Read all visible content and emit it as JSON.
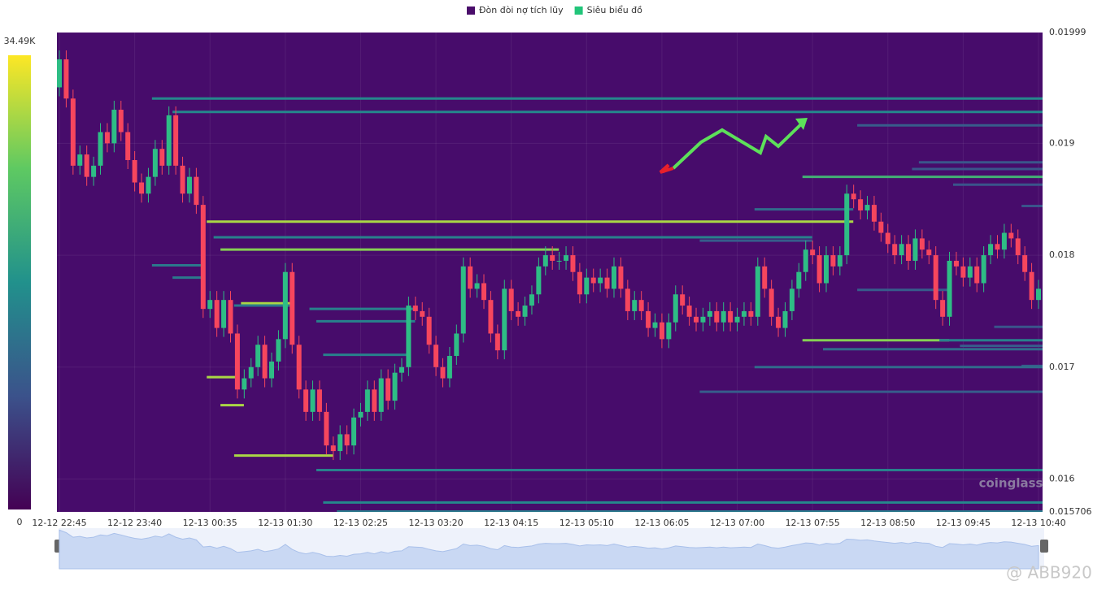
{
  "chart_data": {
    "type": "candlestick",
    "legend": [
      {
        "name": "Đòn đòi nợ tích lũy",
        "color": "#4a0d6b"
      },
      {
        "name": "Siêu biểu đồ",
        "color": "#22c57a"
      }
    ],
    "up_color": "#2ebd85",
    "down_color": "#f6465d",
    "ylim": [
      0.015706,
      0.01999
    ],
    "yticks": [
      0.01999,
      0.019,
      0.018,
      0.017,
      0.016,
      0.015706
    ],
    "xlim": [
      0,
      143
    ],
    "xticks": [
      {
        "value": 0,
        "label": "12-12 22:45"
      },
      {
        "value": 11,
        "label": "12-12 23:40"
      },
      {
        "value": 22,
        "label": "12-13 00:35"
      },
      {
        "value": 33,
        "label": "12-13 01:30"
      },
      {
        "value": 44,
        "label": "12-13 02:25"
      },
      {
        "value": 55,
        "label": "12-13 03:20"
      },
      {
        "value": 66,
        "label": "12-13 04:15"
      },
      {
        "value": 77,
        "label": "12-13 05:10"
      },
      {
        "value": 88,
        "label": "12-13 06:05"
      },
      {
        "value": 99,
        "label": "12-13 07:00"
      },
      {
        "value": 110,
        "label": "12-13 07:55"
      },
      {
        "value": 121,
        "label": "12-13 08:50"
      },
      {
        "value": 132,
        "label": "12-13 09:45"
      },
      {
        "value": 143,
        "label": "12-13 10:40"
      }
    ],
    "grid": true,
    "colorscale": {
      "min": 0,
      "max": {
        "value": 34490,
        "label": "34.49K"
      }
    },
    "watermark": "coinglass",
    "credit": "@ ABB920",
    "open": [
      0.0195,
      0.01975,
      0.0194,
      0.0188,
      0.0189,
      0.0187,
      0.0188,
      0.0191,
      0.019,
      0.0193,
      0.0191,
      0.01885,
      0.01865,
      0.01855,
      0.0187,
      0.01895,
      0.0188,
      0.01925,
      0.0188,
      0.01855,
      0.0187,
      0.01845,
      0.01752,
      0.0176,
      0.01735,
      0.0176,
      0.0173,
      0.0168,
      0.0169,
      0.017,
      0.0172,
      0.0169,
      0.01705,
      0.01725,
      0.01785,
      0.0172,
      0.0168,
      0.0166,
      0.0168,
      0.0166,
      0.0163,
      0.01625,
      0.0164,
      0.0163,
      0.01655,
      0.0166,
      0.0168,
      0.0166,
      0.0169,
      0.0167,
      0.01695,
      0.017,
      0.01755,
      0.0175,
      0.01745,
      0.0172,
      0.017,
      0.0169,
      0.0171,
      0.0173,
      0.0179,
      0.0177,
      0.01775,
      0.0176,
      0.0173,
      0.01715,
      0.0177,
      0.0175,
      0.01745,
      0.01755,
      0.01765,
      0.0179,
      0.018,
      0.01795,
      0.01795,
      0.018,
      0.01785,
      0.01765,
      0.0178,
      0.01775,
      0.0178,
      0.0177,
      0.0179,
      0.0177,
      0.0175,
      0.0176,
      0.0175,
      0.01735,
      0.0174,
      0.01725,
      0.0174,
      0.01765,
      0.01755,
      0.01745,
      0.0174,
      0.01745,
      0.0175,
      0.0174,
      0.0175,
      0.0174,
      0.01745,
      0.0175,
      0.01745,
      0.0179,
      0.0177,
      0.01745,
      0.01735,
      0.0175,
      0.0177,
      0.01785,
      0.01805,
      0.018,
      0.01775,
      0.018,
      0.0179,
      0.018,
      0.01855,
      0.0185,
      0.0184,
      0.01845,
      0.0183,
      0.0182,
      0.0181,
      0.018,
      0.0181,
      0.01795,
      0.01815,
      0.01805,
      0.018,
      0.0176,
      0.01745,
      0.01795,
      0.0179,
      0.0178,
      0.0179,
      0.01775,
      0.018,
      0.0181,
      0.01805,
      0.0182,
      0.01815,
      0.018,
      0.01785,
      0.0176
    ],
    "high": [
      0.01983,
      0.01983,
      0.01948,
      0.01898,
      0.01898,
      0.01888,
      0.01918,
      0.01918,
      0.01938,
      0.01938,
      0.01918,
      0.01893,
      0.01873,
      0.01878,
      0.01903,
      0.01903,
      0.01933,
      0.01933,
      0.01888,
      0.01878,
      0.01878,
      0.01853,
      0.01768,
      0.01768,
      0.01768,
      0.01768,
      0.01738,
      0.01698,
      0.01708,
      0.01728,
      0.01728,
      0.01713,
      0.01733,
      0.01793,
      0.01793,
      0.01728,
      0.01688,
      0.01688,
      0.01688,
      0.01668,
      0.01638,
      0.01648,
      0.01648,
      0.01663,
      0.01668,
      0.01688,
      0.01688,
      0.01698,
      0.01698,
      0.01703,
      0.01708,
      0.01763,
      0.01763,
      0.01758,
      0.01753,
      0.01728,
      0.01708,
      0.01718,
      0.01738,
      0.01798,
      0.01798,
      0.01783,
      0.01783,
      0.01768,
      0.01738,
      0.01778,
      0.01778,
      0.01758,
      0.01763,
      0.01773,
      0.01798,
      0.01808,
      0.01808,
      0.01803,
      0.01808,
      0.01808,
      0.01793,
      0.01788,
      0.01788,
      0.01788,
      0.01788,
      0.01798,
      0.01798,
      0.01778,
      0.01768,
      0.01768,
      0.01758,
      0.01748,
      0.01748,
      0.01748,
      0.01773,
      0.01773,
      0.01763,
      0.01753,
      0.01753,
      0.01758,
      0.01758,
      0.01758,
      0.01758,
      0.01753,
      0.01758,
      0.01758,
      0.01798,
      0.01798,
      0.01778,
      0.01753,
      0.01758,
      0.01778,
      0.01793,
      0.01813,
      0.01813,
      0.01808,
      0.01808,
      0.01808,
      0.01808,
      0.01863,
      0.01863,
      0.01858,
      0.01853,
      0.01853,
      0.01838,
      0.01828,
      0.01818,
      0.01818,
      0.01818,
      0.01823,
      0.01823,
      0.01813,
      0.01808,
      0.01768,
      0.01803,
      0.01803,
      0.01798,
      0.01798,
      0.01798,
      0.01808,
      0.01818,
      0.01818,
      0.01828,
      0.01828,
      0.01823,
      0.01808,
      0.01793,
      0.01778
    ],
    "low": [
      0.01942,
      0.01932,
      0.01872,
      0.01872,
      0.01862,
      0.01862,
      0.01872,
      0.01892,
      0.01892,
      0.01902,
      0.01877,
      0.01857,
      0.01847,
      0.01847,
      0.01862,
      0.01872,
      0.01872,
      0.01872,
      0.01847,
      0.01847,
      0.01837,
      0.01744,
      0.01744,
      0.01727,
      0.01727,
      0.01722,
      0.01672,
      0.01672,
      0.01682,
      0.01692,
      0.01682,
      0.01682,
      0.01697,
      0.01717,
      0.01712,
      0.01672,
      0.01652,
      0.01652,
      0.01652,
      0.01622,
      0.01617,
      0.01617,
      0.01622,
      0.01622,
      0.01647,
      0.01652,
      0.01652,
      0.01652,
      0.01662,
      0.01662,
      0.01687,
      0.01692,
      0.01742,
      0.01737,
      0.01712,
      0.01692,
      0.01682,
      0.01682,
      0.01702,
      0.01722,
      0.01762,
      0.01762,
      0.01752,
      0.01722,
      0.01707,
      0.01707,
      0.01742,
      0.01737,
      0.01737,
      0.01747,
      0.01757,
      0.01782,
      0.01787,
      0.01787,
      0.01787,
      0.01777,
      0.01757,
      0.01757,
      0.01767,
      0.01767,
      0.01762,
      0.01762,
      0.01762,
      0.01742,
      0.01742,
      0.01742,
      0.01727,
      0.01727,
      0.01717,
      0.01717,
      0.01732,
      0.01747,
      0.01737,
      0.01732,
      0.01732,
      0.01737,
      0.01732,
      0.01732,
      0.01732,
      0.01732,
      0.01737,
      0.01737,
      0.01737,
      0.01762,
      0.01737,
      0.01727,
      0.01727,
      0.01742,
      0.01762,
      0.01777,
      0.01792,
      0.01767,
      0.01767,
      0.01782,
      0.01782,
      0.01792,
      0.01842,
      0.01832,
      0.01832,
      0.01822,
      0.01812,
      0.01802,
      0.01792,
      0.01792,
      0.01787,
      0.01787,
      0.01797,
      0.01792,
      0.01752,
      0.01737,
      0.01737,
      0.01782,
      0.01772,
      0.01772,
      0.01767,
      0.01767,
      0.01792,
      0.01797,
      0.01797,
      0.01807,
      0.01792,
      0.01777,
      0.01752,
      0.01752
    ],
    "close": [
      0.01975,
      0.0194,
      0.0188,
      0.0189,
      0.0187,
      0.0188,
      0.0191,
      0.019,
      0.0193,
      0.0191,
      0.01885,
      0.01865,
      0.01855,
      0.0187,
      0.01895,
      0.0188,
      0.01925,
      0.0188,
      0.01855,
      0.0187,
      0.01845,
      0.01752,
      0.0176,
      0.01735,
      0.0176,
      0.0173,
      0.0168,
      0.0169,
      0.017,
      0.0172,
      0.0169,
      0.01705,
      0.01725,
      0.01785,
      0.0172,
      0.0168,
      0.0166,
      0.0168,
      0.0166,
      0.0163,
      0.01625,
      0.0164,
      0.0163,
      0.01655,
      0.0166,
      0.0168,
      0.0166,
      0.0169,
      0.0167,
      0.01695,
      0.017,
      0.01755,
      0.0175,
      0.01745,
      0.0172,
      0.017,
      0.0169,
      0.0171,
      0.0173,
      0.0179,
      0.0177,
      0.01775,
      0.0176,
      0.0173,
      0.01715,
      0.0177,
      0.0175,
      0.01745,
      0.01755,
      0.01765,
      0.0179,
      0.018,
      0.01795,
      0.01795,
      0.018,
      0.01785,
      0.01765,
      0.0178,
      0.01775,
      0.0178,
      0.0177,
      0.0179,
      0.0177,
      0.0175,
      0.0176,
      0.0175,
      0.01735,
      0.0174,
      0.01725,
      0.0174,
      0.01765,
      0.01755,
      0.01745,
      0.0174,
      0.01745,
      0.0175,
      0.0174,
      0.0175,
      0.0174,
      0.01745,
      0.0175,
      0.01745,
      0.0179,
      0.0177,
      0.01745,
      0.01735,
      0.0175,
      0.0177,
      0.01785,
      0.01805,
      0.018,
      0.01775,
      0.018,
      0.0179,
      0.018,
      0.01855,
      0.0185,
      0.0184,
      0.01845,
      0.0183,
      0.0182,
      0.0181,
      0.018,
      0.0181,
      0.01795,
      0.01815,
      0.01805,
      0.018,
      0.0176,
      0.01745,
      0.01795,
      0.0179,
      0.0178,
      0.0179,
      0.01775,
      0.018,
      0.0181,
      0.01805,
      0.0182,
      0.01815,
      0.018,
      0.01785,
      0.0176,
      0.0177
    ],
    "levels": [
      {
        "price": 0.0194,
        "start": 14,
        "end": 143,
        "value": 16000
      },
      {
        "price": 0.01928,
        "start": 17,
        "end": 143,
        "value": 16000
      },
      {
        "price": 0.01916,
        "start": 117,
        "end": 143,
        "value": 10000
      },
      {
        "price": 0.01883,
        "start": 126,
        "end": 143,
        "value": 9000
      },
      {
        "price": 0.01877,
        "start": 125,
        "end": 143,
        "value": 9000
      },
      {
        "price": 0.0187,
        "start": 109,
        "end": 143,
        "value": 22000
      },
      {
        "price": 0.01863,
        "start": 131,
        "end": 143,
        "value": 9000
      },
      {
        "price": 0.01844,
        "start": 141,
        "end": 143,
        "value": 9000
      },
      {
        "price": 0.01841,
        "start": 102,
        "end": 115,
        "value": 12000
      },
      {
        "price": 0.0183,
        "start": 22,
        "end": 115,
        "value": 30000
      },
      {
        "price": 0.01816,
        "start": 23,
        "end": 109,
        "value": 15000
      },
      {
        "price": 0.01813,
        "start": 94,
        "end": 109,
        "value": 10000
      },
      {
        "price": 0.01805,
        "start": 24,
        "end": 72,
        "value": 28000
      },
      {
        "price": 0.01791,
        "start": 14,
        "end": 20,
        "value": 14000
      },
      {
        "price": 0.0178,
        "start": 17,
        "end": 20,
        "value": 14000
      },
      {
        "price": 0.01769,
        "start": 117,
        "end": 129,
        "value": 10000
      },
      {
        "price": 0.01757,
        "start": 27,
        "end": 33,
        "value": 30000
      },
      {
        "price": 0.01755,
        "start": 26,
        "end": 33,
        "value": 14000
      },
      {
        "price": 0.01752,
        "start": 37,
        "end": 51,
        "value": 15000
      },
      {
        "price": 0.01741,
        "start": 38,
        "end": 51,
        "value": 15000
      },
      {
        "price": 0.01736,
        "start": 137,
        "end": 143,
        "value": 9000
      },
      {
        "price": 0.01724,
        "start": 109,
        "end": 129,
        "value": 28000
      },
      {
        "price": 0.01724,
        "start": 129,
        "end": 143,
        "value": 15000
      },
      {
        "price": 0.01719,
        "start": 132,
        "end": 143,
        "value": 10000
      },
      {
        "price": 0.01716,
        "start": 112,
        "end": 143,
        "value": 12000
      },
      {
        "price": 0.01711,
        "start": 39,
        "end": 50,
        "value": 15000
      },
      {
        "price": 0.01701,
        "start": 141,
        "end": 143,
        "value": 10000
      },
      {
        "price": 0.017,
        "start": 102,
        "end": 143,
        "value": 12000
      },
      {
        "price": 0.01691,
        "start": 22,
        "end": 25,
        "value": 30000
      },
      {
        "price": 0.01678,
        "start": 94,
        "end": 143,
        "value": 10000
      },
      {
        "price": 0.01666,
        "start": 24,
        "end": 26,
        "value": 30000
      },
      {
        "price": 0.01621,
        "start": 26,
        "end": 39,
        "value": 30000
      },
      {
        "price": 0.01608,
        "start": 38,
        "end": 143,
        "value": 15000
      },
      {
        "price": 0.01579,
        "start": 39,
        "end": 143,
        "value": 16000
      },
      {
        "price": 0.01571,
        "start": 41,
        "end": 143,
        "value": 14000
      }
    ]
  }
}
